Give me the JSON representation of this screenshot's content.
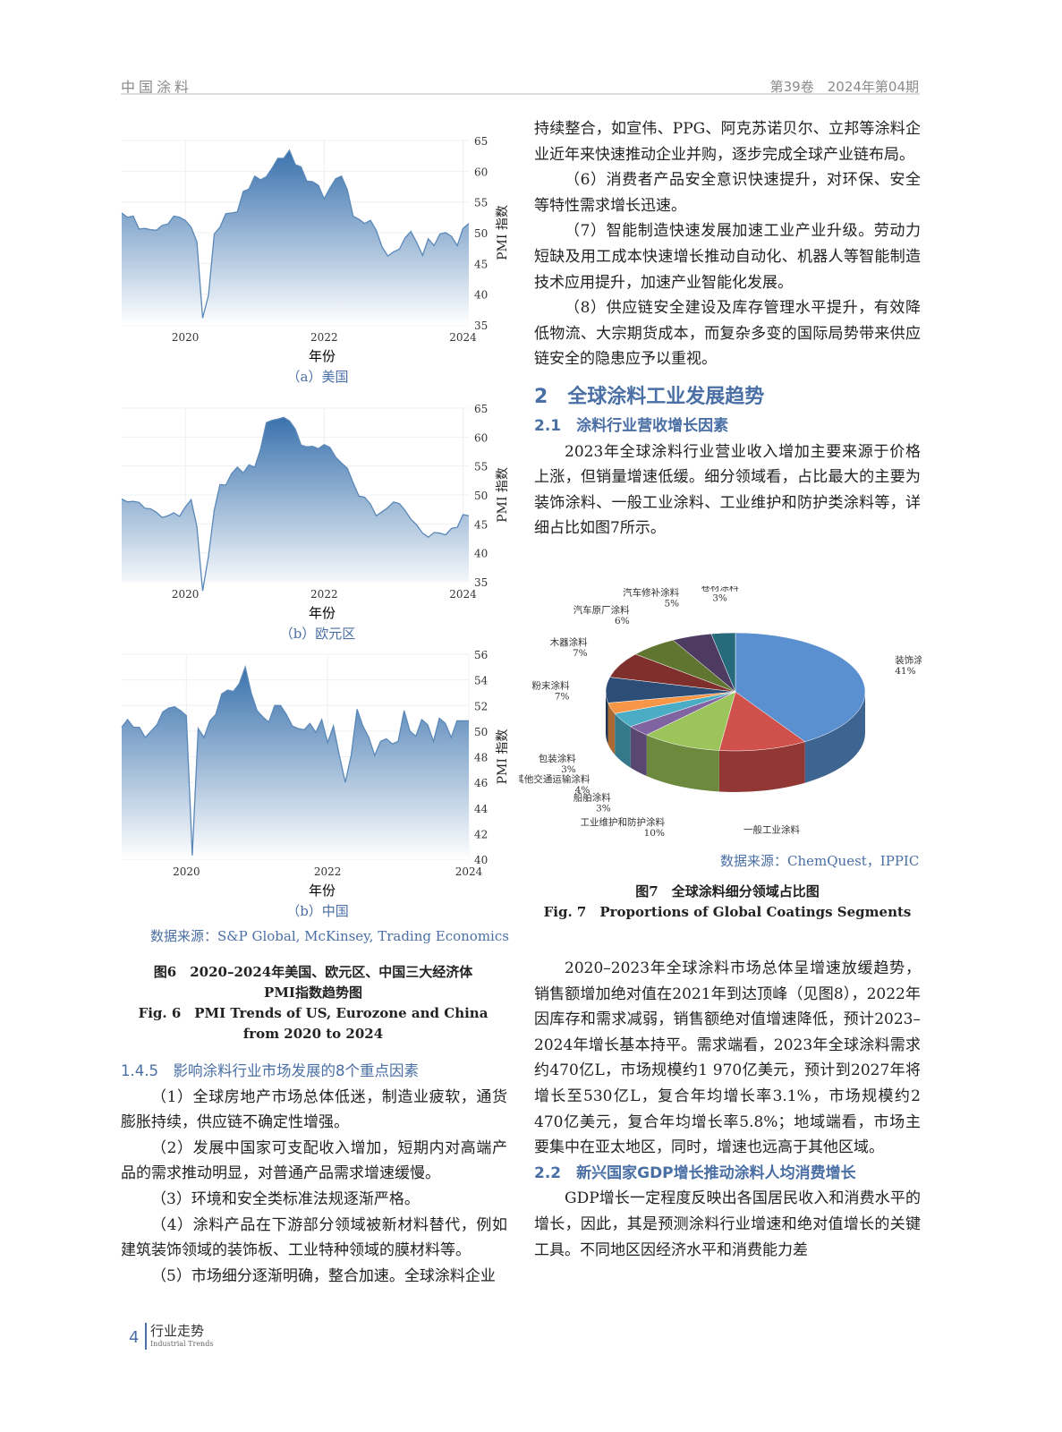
{
  "header": {
    "journal": "中国涂料",
    "issue": "第39卷　2024年第04期"
  },
  "footer": {
    "page": "4",
    "section": "行业走势",
    "section_en": "Industrial Trends"
  },
  "figure6": {
    "source": "数据来源：S&P Global, McKinsey, Trading Economics",
    "caption_cn_1": "图6　2020–2024年美国、欧元区、中国三大经济体",
    "caption_cn_2": "PMI指数趋势图",
    "caption_en_1": "Fig. 6　PMI Trends of US, Eurozone and China",
    "caption_en_2": "from 2020 to 2024"
  },
  "figure7": {
    "source": "数据来源：ChemQuest，IPPIC",
    "caption_cn": "图7　全球涂料细分领域占比图",
    "caption_en": "Fig. 7　Proportions of Global Coatings Segments"
  },
  "chart_data": [
    {
      "type": "area",
      "subtitle": "（a）美国",
      "xlabel": "年份",
      "ylabel": "PMI 指数",
      "start": "2019-02",
      "frequency": "monthly",
      "ylim": [
        35,
        65
      ],
      "yticks": [
        "35",
        "40",
        "45",
        "50",
        "55",
        "60",
        "65"
      ],
      "xticks": [
        "2020",
        "2022",
        "2024"
      ],
      "grid": true,
      "color": "#4a7fb5",
      "values": [
        53.2,
        52.5,
        52.7,
        50.6,
        50.7,
        50.5,
        50.4,
        51.2,
        51.4,
        52.7,
        52.5,
        52.0,
        50.9,
        48.5,
        36.1,
        39.8,
        49.8,
        50.9,
        53.1,
        53.2,
        53.4,
        56.7,
        57.1,
        59.2,
        58.6,
        59.1,
        60.5,
        62.1,
        62.1,
        63.4,
        61.1,
        60.7,
        58.4,
        58.3,
        57.7,
        55.5,
        57.3,
        58.8,
        59.2,
        57.0,
        52.7,
        52.2,
        51.5,
        52.0,
        50.4,
        47.7,
        46.2,
        46.9,
        47.3,
        49.2,
        50.2,
        48.4,
        46.3,
        49.0,
        47.9,
        49.8,
        50.0,
        49.4,
        47.9,
        50.7,
        51.5
      ]
    },
    {
      "type": "area",
      "subtitle": "（b）欧元区",
      "xlabel": "年份",
      "ylabel": "PMI 指数",
      "start": "2019-02",
      "frequency": "monthly",
      "ylim": [
        35,
        65
      ],
      "yticks": [
        "35",
        "40",
        "45",
        "50",
        "55",
        "60",
        "65"
      ],
      "xticks": [
        "2020",
        "2022",
        "2024"
      ],
      "grid": true,
      "color": "#4a7fb5",
      "values": [
        49.3,
        48.8,
        48.9,
        48.7,
        47.7,
        47.6,
        47.0,
        46.1,
        46.4,
        46.9,
        46.3,
        47.9,
        49.2,
        44.5,
        33.4,
        39.4,
        47.4,
        51.8,
        51.7,
        53.7,
        54.8,
        53.8,
        55.2,
        54.8,
        57.9,
        62.5,
        62.9,
        63.1,
        63.4,
        62.8,
        61.4,
        58.6,
        58.3,
        58.4,
        58.0,
        58.7,
        58.2,
        56.5,
        55.5,
        54.6,
        52.1,
        49.8,
        49.6,
        48.4,
        46.4,
        47.1,
        47.8,
        48.8,
        48.5,
        47.3,
        45.8,
        44.8,
        43.4,
        42.7,
        43.5,
        43.4,
        43.1,
        44.2,
        44.4,
        46.6,
        46.4
      ]
    },
    {
      "type": "area",
      "subtitle": "（b）中国",
      "xlabel": "年份",
      "ylabel": "PMI 指数",
      "start": "2019-02",
      "frequency": "monthly",
      "ylim": [
        40,
        56
      ],
      "yticks": [
        "40",
        "42",
        "44",
        "46",
        "48",
        "50",
        "52",
        "54",
        "56"
      ],
      "xticks": [
        "2020",
        "2022",
        "2024"
      ],
      "grid": true,
      "color": "#4a7fb5",
      "values": [
        50.3,
        50.9,
        50.3,
        50.3,
        49.5,
        50.0,
        50.5,
        51.5,
        51.8,
        51.9,
        51.6,
        51.2,
        40.3,
        50.2,
        49.5,
        50.8,
        51.3,
        52.9,
        53.2,
        53.1,
        53.7,
        55.0,
        53.0,
        51.6,
        51.1,
        50.7,
        52.0,
        52.0,
        51.3,
        50.4,
        50.2,
        50.1,
        50.6,
        49.9,
        50.9,
        49.1,
        50.4,
        48.1,
        46.0,
        48.1,
        51.7,
        50.4,
        49.5,
        48.1,
        49.2,
        49.4,
        49.0,
        49.2,
        51.6,
        50.0,
        49.6,
        50.9,
        50.5,
        49.2,
        51.0,
        50.6,
        49.5,
        50.8,
        50.8,
        50.8
      ]
    },
    {
      "type": "pie",
      "style": "3d",
      "slices": [
        {
          "label": "装饰涂料",
          "value": 41,
          "text": "41%",
          "color": "#5a8fd0"
        },
        {
          "label": "一般工业涂料",
          "value": 11,
          "text": "11%",
          "color": "#d0504c"
        },
        {
          "label": "工业维护和防护涂料",
          "value": 10,
          "text": "10%",
          "color": "#9bc45a"
        },
        {
          "label": "船舶涂料",
          "value": 3,
          "text": "3%",
          "color": "#8064a2"
        },
        {
          "label": "其他交通运输涂料",
          "value": 4,
          "text": "4%",
          "color": "#4bacc6"
        },
        {
          "label": "包装涂料",
          "value": 3,
          "text": "3%",
          "color": "#f79646"
        },
        {
          "label": "粉末涂料",
          "value": 7,
          "text": "7%",
          "color": "#2c4d75"
        },
        {
          "label": "木器涂料",
          "value": 7,
          "text": "7%",
          "color": "#7f2f2c"
        },
        {
          "label": "汽车原厂涂料",
          "value": 6,
          "text": "6%",
          "color": "#5f7530"
        },
        {
          "label": "汽车修补涂料",
          "value": 5,
          "text": "5%",
          "color": "#4d3b62"
        },
        {
          "label": "卷材涂料",
          "value": 3,
          "text": "3%",
          "color": "#276a7c"
        }
      ]
    }
  ],
  "left": {
    "h145": "1.4.5　影响涂料行业市场发展的8个重点因素",
    "p1": "（1）全球房地产市场总体低迷，制造业疲软，通货膨胀持续，供应链不确定性增强。",
    "p2": "（2）发展中国家可支配收入增加，短期内对高端产品的需求推动明显，对普通产品需求增速缓慢。",
    "p3": "（3）环境和安全类标准法规逐渐严格。",
    "p4": "（4）涂料产品在下游部分领域被新材料替代，例如建筑装饰领域的装饰板、工业特种领域的膜材料等。",
    "p5": "（5）市场细分逐渐明确，整合加速。全球涂料企业"
  },
  "right": {
    "p0": "持续整合，如宣伟、PPG、阿克苏诺贝尔、立邦等涂料企业近年来快速推动企业并购，逐步完成全球产业链布局。",
    "p6": "（6）消费者产品安全意识快速提升，对环保、安全等特性需求增长迅速。",
    "p7": "（7）智能制造快速发展加速工业产业升级。劳动力短缺及用工成本快速增长推动自动化、机器人等智能制造技术应用提升，加速产业智能化发展。",
    "p8": "（8）供应链安全建设及库存管理水平提升，有效降低物流、大宗期货成本，而复杂多变的国际局势带来供应链安全的隐患应予以重视。",
    "h2": "2　全球涂料工业发展趋势",
    "h21": "2.1　涂料行业营收增长因素",
    "p21": "2023年全球涂料行业营业收入增加主要来源于价格上涨，但销量增速低缓。细分领域看，占比最大的主要为装饰涂料、一般工业涂料、工业维护和防护类涂料等，详细占比如图7所示。",
    "p22": "2020–2023年全球涂料市场总体呈增速放缓趋势，销售额增加绝对值在2021年到达顶峰（见图8），2022年因库存和需求减弱，销售额绝对值增速降低，预计2023–2024年增长基本持平。需求端看，2023年全球涂料需求约470亿L，市场规模约1 970亿美元，预计到2027年将增长至530亿L，复合年均增长率3.1%，市场规模约2 470亿美元，复合年均增长率5.8%；地域端看，市场主要集中在亚太地区，同时，增速也远高于其他区域。",
    "h22": "2.2　新兴国家GDP增长推动涂料人均消费增长",
    "p23": "GDP增长一定程度反映出各国居民收入和消费水平的增长，因此，其是预测涂料行业增速和绝对值增长的关键工具。不同地区因经济水平和消费能力差"
  }
}
